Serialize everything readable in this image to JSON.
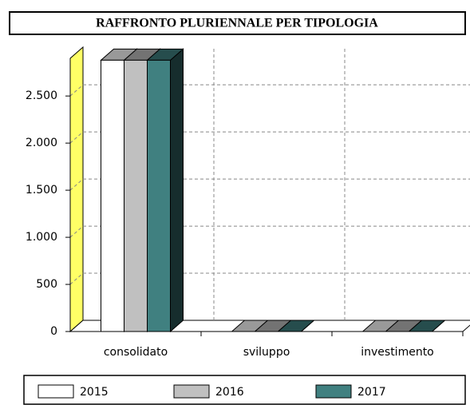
{
  "chart_data": {
    "type": "bar3d",
    "title": "RAFFRONTO PLURIENNALE PER TIPOLOGIA",
    "categories": [
      "consolidato",
      "sviluppo",
      "investimento"
    ],
    "series": [
      {
        "name": "2015",
        "color": "#ffffff",
        "values": [
          2880,
          0,
          0
        ]
      },
      {
        "name": "2016",
        "color": "#c0c0c0",
        "values": [
          2880,
          0,
          0
        ]
      },
      {
        "name": "2017",
        "color": "#408080",
        "values": [
          2880,
          0,
          0
        ]
      }
    ],
    "ylim": [
      0,
      2900
    ],
    "yticks": [
      0,
      500,
      {
        "value": 1000,
        "label": "1.000"
      },
      {
        "value": 1500,
        "label": "1.500"
      },
      {
        "value": 2000,
        "label": "2.000"
      },
      {
        "value": 2500,
        "label": "2.500"
      }
    ],
    "grid": true,
    "legend": "bottom"
  }
}
